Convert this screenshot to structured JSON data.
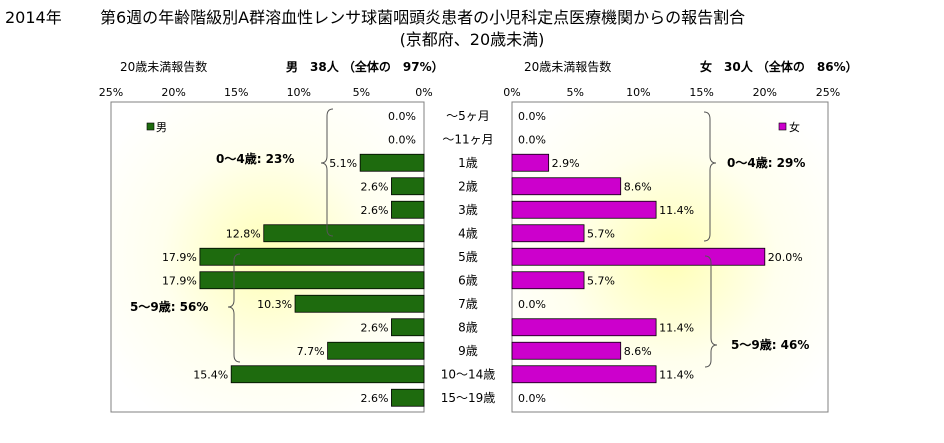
{
  "title": {
    "year": "2014年",
    "main": "第6週の年齢階級別A群溶血性レンサ球菌咽頭炎患者の小児科定点医療機関からの報告割合",
    "sub": "(京都府、20歳未満)"
  },
  "panels": {
    "left": {
      "caption": "20歳未満報告数",
      "summary": "男　38人 （全体の　97%）",
      "legend": "男",
      "color": "#1E6B0E",
      "group_labels": [
        "0～4歳: 23%",
        "5～9歳: 56%"
      ]
    },
    "right": {
      "caption": "20歳未満報告数",
      "summary": "女　30人 （全体の　86%）",
      "legend": "女",
      "color": "#CC00CC",
      "group_labels": [
        "0～4歳: 29%",
        "5～9歳: 46%"
      ]
    }
  },
  "chart_data": {
    "type": "bar",
    "orientation": "horizontal",
    "categories": [
      "～5ヶ月",
      "～11ヶ月",
      "1歳",
      "2歳",
      "3歳",
      "4歳",
      "5歳",
      "6歳",
      "7歳",
      "8歳",
      "9歳",
      "10～14歳",
      "15～19歳"
    ],
    "series": [
      {
        "name": "男",
        "values": [
          0.0,
          0.0,
          5.1,
          2.6,
          2.6,
          12.8,
          17.9,
          17.9,
          10.3,
          2.6,
          7.7,
          15.4,
          2.6
        ],
        "color": "#1E6B0E"
      },
      {
        "name": "女",
        "values": [
          0.0,
          0.0,
          2.9,
          8.6,
          11.4,
          5.7,
          20.0,
          5.7,
          0.0,
          11.4,
          8.6,
          11.4,
          0.0
        ],
        "color": "#CC00CC"
      }
    ],
    "value_labels": {
      "男": [
        "0.0%",
        "0.0%",
        "5.1%",
        "2.6%",
        "2.6%",
        "12.8%",
        "17.9%",
        "17.9%",
        "10.3%",
        "2.6%",
        "7.7%",
        "15.4%",
        "2.6%"
      ],
      "女": [
        "0.0%",
        "0.0%",
        "2.9%",
        "8.6%",
        "11.4%",
        "5.7%",
        "20.0%",
        "5.7%",
        "0.0%",
        "11.4%",
        "8.6%",
        "11.4%",
        "0.0%"
      ]
    },
    "xlim": [
      0,
      25
    ],
    "left_ticks": [
      "25%",
      "20%",
      "15%",
      "10%",
      "5%",
      "0%"
    ],
    "right_ticks": [
      "0%",
      "5%",
      "10%",
      "15%",
      "20%",
      "25%"
    ],
    "grid": false,
    "legend_placement": "top-corner of each panel"
  }
}
